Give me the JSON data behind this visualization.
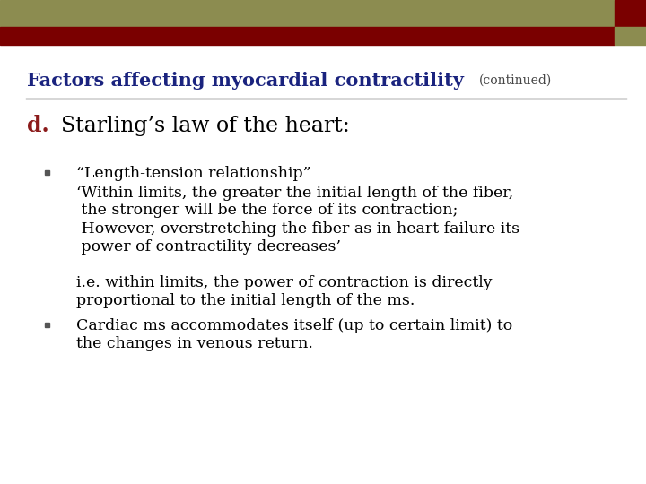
{
  "bg_color": "#ffffff",
  "header_bar1_color": "#8c8c50",
  "header_bar2_color": "#7a0000",
  "title_main": "Factors affecting myocardial contractility",
  "title_continued": "(continued)",
  "title_color": "#1a237e",
  "title_continued_color": "#444444",
  "title_fontsize": 15,
  "title_continued_fontsize": 10,
  "separator_color": "#333333",
  "d_label": "d.",
  "d_label_color": "#8b1a1a",
  "d_label_fontsize": 17,
  "d_text": "Starling’s law of the heart:",
  "d_text_fontsize": 17,
  "bullet_color": "#555555",
  "bullet1_header": "“Length-tension relationship”",
  "bullet1_line1": "‘Within limits, the greater the initial length of the fiber,",
  "bullet1_line2": " the stronger will be the force of its contraction;",
  "bullet1_line3": " However, overstretching the fiber as in heart failure its",
  "bullet1_line4": " power of contractility decreases’",
  "ie_line1": "i.e. within limits, the power of contraction is directly",
  "ie_line2": "proportional to the initial length of the ms.",
  "bullet2_line1": "Cardiac ms accommodates itself (up to certain limit) to",
  "bullet2_line2": "the changes in venous return.",
  "body_fontsize": 12.5,
  "body_color": "#000000"
}
